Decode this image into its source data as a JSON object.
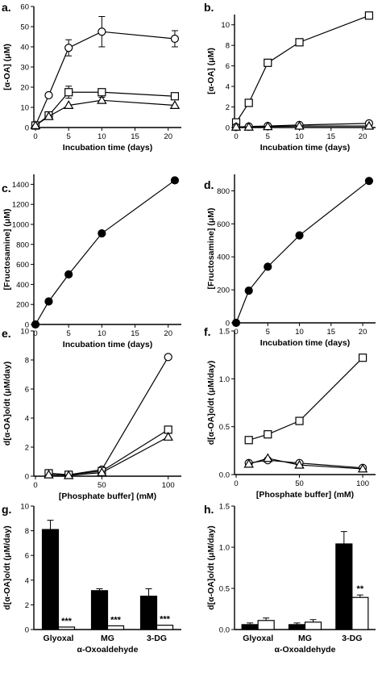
{
  "chart_data": [
    {
      "panel": "a.",
      "type": "line",
      "xlabel": "Incubation time (days)",
      "ylabel": "[α-OA] (μM)",
      "xlim": [
        0,
        20
      ],
      "ylim": [
        0,
        60
      ],
      "xticks": [
        0,
        5,
        10,
        15,
        20
      ],
      "yticks": [
        0,
        10,
        20,
        30,
        40,
        50,
        60
      ],
      "x": [
        0,
        2,
        5,
        10,
        21
      ],
      "series": [
        {
          "marker": "circle-open",
          "values": [
            1,
            16,
            39.5,
            47.5,
            44
          ],
          "errors": [
            0,
            0,
            4,
            7.5,
            4
          ]
        },
        {
          "marker": "square-open",
          "values": [
            1,
            6,
            17.5,
            17.5,
            15.5
          ],
          "errors": [
            0,
            0,
            3,
            0,
            0
          ]
        },
        {
          "marker": "triangle-open",
          "values": [
            1,
            5.5,
            11,
            13.5,
            11
          ],
          "errors": [
            0,
            0,
            0,
            1.5,
            0
          ]
        }
      ]
    },
    {
      "panel": "b.",
      "type": "line",
      "xlabel": "Incubation time (days)",
      "ylabel": "[α-OA] (μM)",
      "xlim": [
        0,
        20
      ],
      "ylim": [
        0,
        11
      ],
      "xticks": [
        0,
        5,
        10,
        15,
        20
      ],
      "yticks": [
        0,
        2,
        4,
        6,
        8,
        10
      ],
      "x": [
        0,
        2,
        5,
        10,
        21
      ],
      "series": [
        {
          "marker": "square-open",
          "values": [
            0.5,
            2.4,
            6.3,
            8.3,
            10.9
          ],
          "errors": [
            0,
            0,
            0,
            0,
            0
          ]
        },
        {
          "marker": "circle-open",
          "values": [
            0.05,
            0.1,
            0.15,
            0.25,
            0.4
          ],
          "errors": [
            0,
            0,
            0,
            0,
            0
          ]
        },
        {
          "marker": "triangle-open",
          "values": [
            0.05,
            0.05,
            0.1,
            0.15,
            0.15
          ],
          "errors": [
            0,
            0,
            0,
            0,
            0
          ]
        }
      ]
    },
    {
      "panel": "c.",
      "type": "line",
      "xlabel": "Incubation time (days)",
      "ylabel": "[Fructosamine] (μM)",
      "xlim": [
        0,
        20
      ],
      "ylim": [
        0,
        1500
      ],
      "xticks": [
        0,
        5,
        10,
        15,
        20
      ],
      "yticks": [
        0,
        200,
        400,
        600,
        800,
        1000,
        1200,
        1400
      ],
      "x": [
        0,
        2,
        5,
        10,
        21
      ],
      "series": [
        {
          "marker": "circle-filled",
          "values": [
            0,
            230,
            500,
            910,
            1440
          ],
          "errors": [
            0,
            0,
            0,
            0,
            0
          ]
        }
      ]
    },
    {
      "panel": "d.",
      "type": "line",
      "xlabel": "Incubation time (days)",
      "ylabel": "[Fructosamine] (μM)",
      "xlim": [
        0,
        20
      ],
      "ylim": [
        0,
        900
      ],
      "xticks": [
        0,
        5,
        10,
        15,
        20
      ],
      "yticks": [
        0,
        200,
        400,
        600,
        800
      ],
      "x": [
        0,
        2,
        5,
        10,
        21
      ],
      "series": [
        {
          "marker": "circle-filled",
          "values": [
            0,
            195,
            340,
            530,
            860
          ],
          "errors": [
            0,
            0,
            0,
            0,
            0
          ]
        }
      ]
    },
    {
      "panel": "e.",
      "type": "line",
      "xlabel": "[Phosphate buffer] (mM)",
      "ylabel": "d[α-OA]o/dt (μM/day)",
      "xlim": [
        0,
        100
      ],
      "ylim": [
        0,
        10
      ],
      "xticks": [
        0,
        50,
        100
      ],
      "yticks": [
        0,
        2,
        4,
        6,
        8,
        10
      ],
      "x": [
        10,
        25,
        50,
        100
      ],
      "series": [
        {
          "marker": "circle-open",
          "values": [
            0.2,
            0.1,
            0.45,
            8.2
          ],
          "errors": [
            0,
            0,
            0,
            0
          ]
        },
        {
          "marker": "square-open",
          "values": [
            0.2,
            0.1,
            0.35,
            3.2
          ],
          "errors": [
            0,
            0,
            0,
            0
          ]
        },
        {
          "marker": "triangle-open",
          "values": [
            0.1,
            0.05,
            0.25,
            2.7
          ],
          "errors": [
            0,
            0,
            0,
            0
          ]
        }
      ]
    },
    {
      "panel": "f.",
      "type": "line",
      "xlabel": "[Phosphate buffer] (mM)",
      "ylabel": "d[α-OA]o/dt (μM/day)",
      "xlim": [
        0,
        100
      ],
      "ylim": [
        0,
        1.5
      ],
      "xticks": [
        0,
        50,
        100
      ],
      "yticks": [
        0,
        0.5,
        1.0,
        1.5
      ],
      "yticklabels": [
        "0.0",
        "0.5",
        "1.0",
        "1.5"
      ],
      "x": [
        10,
        25,
        50,
        100
      ],
      "series": [
        {
          "marker": "square-open",
          "values": [
            0.36,
            0.42,
            0.56,
            1.22
          ],
          "errors": [
            0,
            0,
            0,
            0
          ]
        },
        {
          "marker": "circle-open",
          "values": [
            0.12,
            0.15,
            0.12,
            0.07
          ],
          "errors": [
            0,
            0,
            0,
            0
          ]
        },
        {
          "marker": "triangle-open",
          "values": [
            0.11,
            0.17,
            0.1,
            0.06
          ],
          "errors": [
            0,
            0,
            0,
            0
          ]
        }
      ]
    },
    {
      "panel": "g.",
      "type": "bar",
      "xlabel": "α-Oxoaldehyde",
      "ylabel": "d[α-OA]o/dt (μM/day)",
      "ylim": [
        0,
        10
      ],
      "yticks": [
        0,
        2,
        4,
        6,
        8,
        10
      ],
      "categories": [
        "Glyoxal",
        "MG",
        "3-DG"
      ],
      "series": [
        {
          "fill": "solid",
          "values": [
            8.1,
            3.15,
            2.7
          ],
          "errors": [
            0.75,
            0.15,
            0.6
          ]
        },
        {
          "fill": "open",
          "values": [
            0.2,
            0.3,
            0.35
          ],
          "errors": [
            0,
            0,
            0
          ]
        }
      ],
      "annotations": [
        "***",
        "***",
        "***"
      ]
    },
    {
      "panel": "h.",
      "type": "bar",
      "xlabel": "α-Oxoaldehyde",
      "ylabel": "d[α-OA]o/dt (μM/day)",
      "ylim": [
        0,
        1.5
      ],
      "yticks": [
        0,
        0.5,
        1.0,
        1.5
      ],
      "yticklabels": [
        "0.0",
        "0.5",
        "1.0",
        "1.5"
      ],
      "categories": [
        "Glyoxal",
        "MG",
        "3-DG"
      ],
      "series": [
        {
          "fill": "solid",
          "values": [
            0.06,
            0.06,
            1.04
          ],
          "errors": [
            0.02,
            0.02,
            0.15
          ]
        },
        {
          "fill": "open",
          "values": [
            0.11,
            0.09,
            0.39
          ],
          "errors": [
            0.03,
            0.03,
            0.03
          ]
        }
      ],
      "annotations": [
        "",
        "",
        "**"
      ]
    }
  ]
}
